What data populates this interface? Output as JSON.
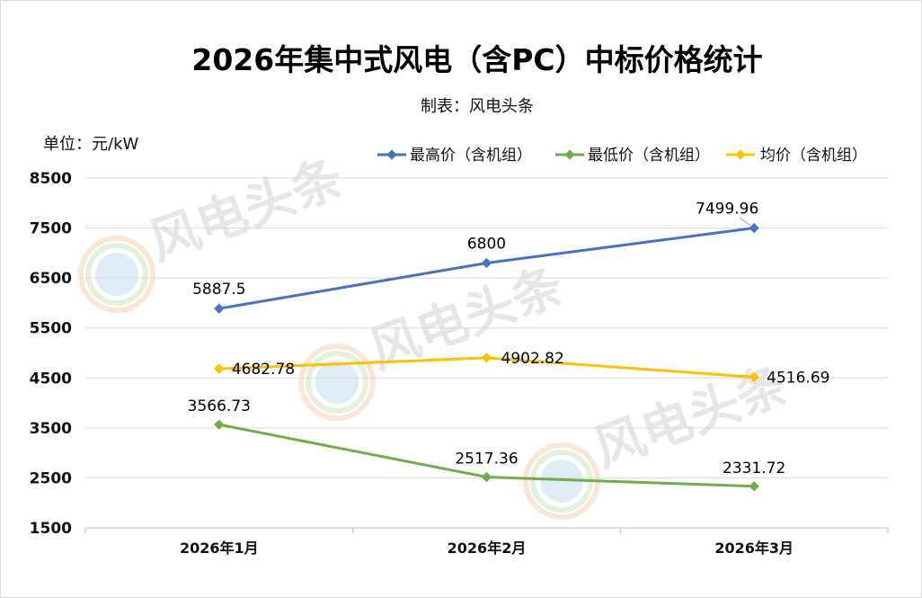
{
  "chart_data": {
    "type": "line",
    "title": "2026年集中式风电（含PC）中标价格统计",
    "subtitle": "制表：风电头条",
    "unit_label": "单位：元/kW",
    "categories": [
      "2026年1月",
      "2026年2月",
      "2026年3月"
    ],
    "ylim": [
      1500,
      8500
    ],
    "yticks": [
      1500,
      2500,
      3500,
      4500,
      5500,
      6500,
      7500,
      8500
    ],
    "grid": true,
    "legend_position": "top-right",
    "series": [
      {
        "name": "最高价（含机组）",
        "color": "#4472C4",
        "values": [
          5887.5,
          6800,
          7499.96
        ],
        "labels": [
          "5887.5",
          "6800",
          "7499.96"
        ]
      },
      {
        "name": "最低价（含机组）",
        "color": "#70AD47",
        "values": [
          3566.73,
          2517.36,
          2331.72
        ],
        "labels": [
          "3566.73",
          "2517.36",
          "2331.72"
        ]
      },
      {
        "name": "均价（含机组）",
        "color": "#FFC000",
        "values": [
          4682.78,
          4902.82,
          4516.69
        ],
        "labels": [
          "4682.78",
          "4902.82",
          "4516.69"
        ]
      }
    ]
  },
  "watermark": {
    "text": "风电头条"
  }
}
